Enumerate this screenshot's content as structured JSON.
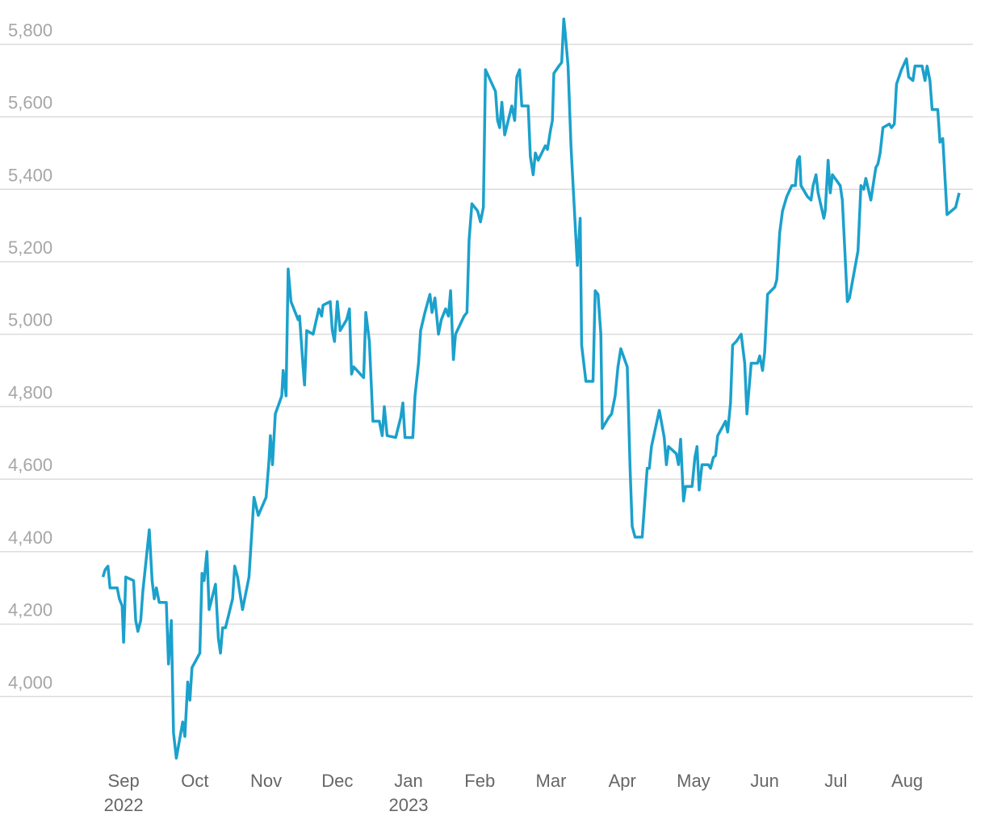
{
  "chart_data": {
    "type": "line",
    "color": "#1ba1cc",
    "grid": true,
    "xlim": [
      -0.5,
      11.9
    ],
    "ylim": [
      3800,
      5900
    ],
    "yticks": [
      {
        "value": 4000,
        "label": "4,000"
      },
      {
        "value": 4200,
        "label": "4,200"
      },
      {
        "value": 4400,
        "label": "4,400"
      },
      {
        "value": 4600,
        "label": "4,600"
      },
      {
        "value": 4800,
        "label": "4,800"
      },
      {
        "value": 5000,
        "label": "5,000"
      },
      {
        "value": 5200,
        "label": "5,200"
      },
      {
        "value": 5400,
        "label": "5,400"
      },
      {
        "value": 5600,
        "label": "5,600"
      },
      {
        "value": 5800,
        "label": "5,800"
      }
    ],
    "xticks": [
      {
        "value": 0,
        "label": "Sep",
        "year": "2022"
      },
      {
        "value": 1,
        "label": "Oct"
      },
      {
        "value": 2,
        "label": "Nov"
      },
      {
        "value": 3,
        "label": "Dec"
      },
      {
        "value": 4,
        "label": "Jan",
        "year": "2023"
      },
      {
        "value": 5,
        "label": "Feb"
      },
      {
        "value": 6,
        "label": "Mar"
      },
      {
        "value": 7,
        "label": "Apr"
      },
      {
        "value": 8,
        "label": "May"
      },
      {
        "value": 9,
        "label": "Jun"
      },
      {
        "value": 10,
        "label": "Jul"
      },
      {
        "value": 11,
        "label": "Aug"
      }
    ],
    "x": [
      -0.29,
      -0.26,
      -0.22,
      -0.19,
      -0.09,
      -0.06,
      -0.02,
      0,
      0.03,
      0.14,
      0.17,
      0.2,
      0.24,
      0.27,
      0.36,
      0.4,
      0.43,
      0.46,
      0.5,
      0.6,
      0.63,
      0.67,
      0.7,
      0.74,
      0.83,
      0.86,
      0.9,
      0.93,
      0.96,
      1.07,
      1.1,
      1.13,
      1.17,
      1.2,
      1.29,
      1.33,
      1.36,
      1.39,
      1.43,
      1.53,
      1.56,
      1.6,
      1.63,
      1.67,
      1.76,
      1.83,
      1.89,
      2,
      2.04,
      2.06,
      2.09,
      2.13,
      2.22,
      2.24,
      2.28,
      2.31,
      2.35,
      2.45,
      2.47,
      2.52,
      2.54,
      2.57,
      2.66,
      2.74,
      2.78,
      2.8,
      2.9,
      2.93,
      2.96,
      3,
      3.04,
      3.13,
      3.17,
      3.2,
      3.23,
      3.37,
      3.4,
      3.45,
      3.5,
      3.59,
      3.63,
      3.66,
      3.7,
      3.82,
      3.89,
      3.92,
      3.95,
      4.06,
      4.09,
      4.14,
      4.17,
      4.23,
      4.3,
      4.33,
      4.37,
      4.42,
      4.46,
      4.52,
      4.56,
      4.59,
      4.63,
      4.66,
      4.78,
      4.82,
      4.85,
      4.89,
      4.97,
      5.01,
      5.05,
      5.08,
      5.15,
      5.22,
      5.25,
      5.28,
      5.31,
      5.35,
      5.45,
      5.49,
      5.52,
      5.56,
      5.59,
      5.68,
      5.71,
      5.75,
      5.78,
      5.82,
      5.92,
      5.95,
      5.99,
      6.02,
      6.04,
      6.11,
      6.15,
      6.18,
      6.2,
      6.24,
      6.28,
      6.37,
      6.41,
      6.43,
      6.49,
      6.59,
      6.62,
      6.66,
      6.7,
      6.72,
      6.81,
      6.85,
      6.9,
      6.94,
      6.98,
      7.07,
      7.11,
      7.14,
      7.18,
      7.28,
      7.31,
      7.35,
      7.38,
      7.41,
      7.52,
      7.59,
      7.62,
      7.65,
      7.76,
      7.79,
      7.82,
      7.86,
      7.89,
      7.98,
      8.02,
      8.05,
      8.08,
      8.12,
      8.21,
      8.24,
      8.28,
      8.31,
      8.34,
      8.45,
      8.48,
      8.52,
      8.55,
      8.6,
      8.67,
      8.72,
      8.75,
      8.81,
      8.9,
      8.93,
      8.97,
      9,
      9.04,
      9.09,
      9.14,
      9.17,
      9.21,
      9.25,
      9.31,
      9.38,
      9.43,
      9.46,
      9.49,
      9.51,
      9.6,
      9.65,
      9.68,
      9.72,
      9.75,
      9.83,
      9.85,
      9.89,
      9.92,
      9.95,
      10.06,
      10.09,
      10.16,
      10.19,
      10.31,
      10.35,
      10.39,
      10.42,
      10.49,
      10.56,
      10.59,
      10.62,
      10.66,
      10.75,
      10.78,
      10.82,
      10.85,
      10.92,
      10.99,
      11.02,
      11.08,
      11.11,
      11.21,
      11.25,
      11.28,
      11.32,
      11.35,
      11.43,
      11.46,
      11.5,
      11.56,
      11.68,
      11.73
    ],
    "values": [
      4330,
      4350,
      4360,
      4300,
      4300,
      4270,
      4250,
      4150,
      4330,
      4320,
      4210,
      4180,
      4210,
      4290,
      4460,
      4320,
      4270,
      4300,
      4260,
      4260,
      4090,
      4210,
      3900,
      3830,
      3930,
      3890,
      4040,
      3990,
      4080,
      4120,
      4340,
      4320,
      4400,
      4240,
      4310,
      4160,
      4120,
      4190,
      4190,
      4270,
      4360,
      4330,
      4290,
      4240,
      4330,
      4550,
      4500,
      4550,
      4650,
      4720,
      4640,
      4780,
      4830,
      4900,
      4830,
      5180,
      5090,
      5040,
      5050,
      4910,
      4860,
      5010,
      5000,
      5070,
      5050,
      5080,
      5090,
      5010,
      4980,
      5090,
      5010,
      5040,
      5070,
      4890,
      4910,
      4880,
      5060,
      4980,
      4760,
      4760,
      4720,
      4800,
      4720,
      4715,
      4770,
      4810,
      4715,
      4715,
      4830,
      4920,
      5010,
      5060,
      5110,
      5060,
      5100,
      5000,
      5040,
      5070,
      5050,
      5120,
      4930,
      5000,
      5050,
      5060,
      5260,
      5360,
      5340,
      5310,
      5350,
      5730,
      5700,
      5670,
      5590,
      5570,
      5640,
      5550,
      5630,
      5590,
      5710,
      5730,
      5630,
      5630,
      5490,
      5440,
      5500,
      5480,
      5520,
      5510,
      5560,
      5590,
      5720,
      5740,
      5750,
      5870,
      5830,
      5740,
      5520,
      5190,
      5320,
      4970,
      4870,
      4870,
      5120,
      5110,
      5000,
      4740,
      4770,
      4780,
      4830,
      4910,
      4960,
      4910,
      4630,
      4470,
      4440,
      4440,
      4520,
      4630,
      4630,
      4690,
      4790,
      4715,
      4640,
      4690,
      4670,
      4640,
      4710,
      4540,
      4580,
      4580,
      4660,
      4690,
      4570,
      4640,
      4640,
      4630,
      4660,
      4665,
      4720,
      4760,
      4730,
      4810,
      4970,
      4980,
      5000,
      4920,
      4780,
      4920,
      4920,
      4940,
      4900,
      4950,
      5110,
      5120,
      5130,
      5150,
      5280,
      5340,
      5380,
      5410,
      5410,
      5480,
      5490,
      5410,
      5380,
      5370,
      5410,
      5440,
      5390,
      5320,
      5340,
      5480,
      5390,
      5440,
      5410,
      5370,
      5090,
      5100,
      5230,
      5410,
      5400,
      5430,
      5370,
      5460,
      5470,
      5500,
      5570,
      5580,
      5570,
      5580,
      5690,
      5730,
      5760,
      5710,
      5700,
      5740,
      5740,
      5700,
      5740,
      5700,
      5620,
      5620,
      5530,
      5540,
      5330,
      5350,
      5390
    ]
  }
}
